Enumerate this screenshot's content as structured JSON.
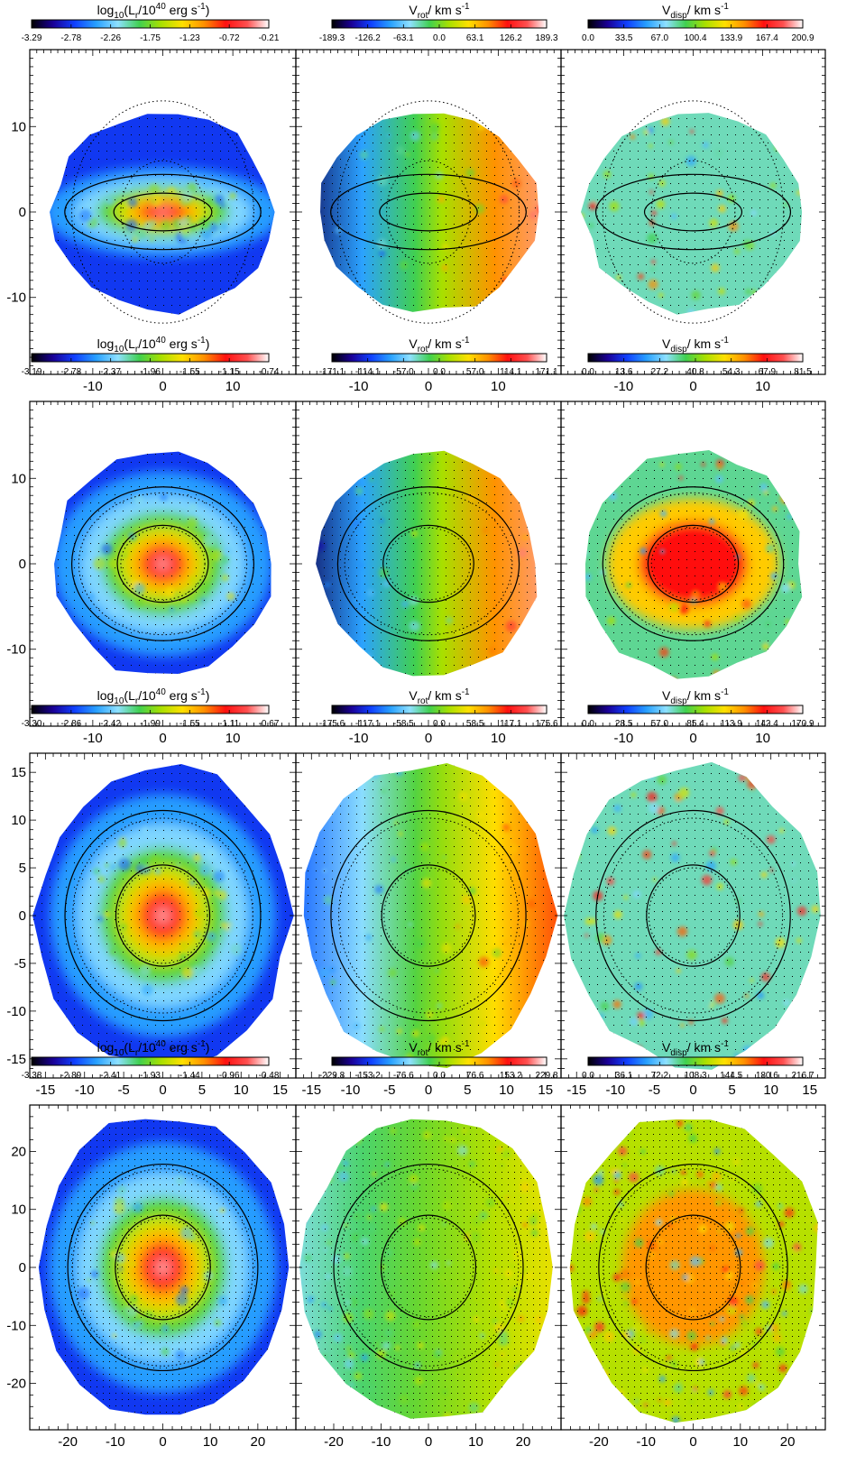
{
  "figure": {
    "colormap": [
      "#000000",
      "#1a0096",
      "#1040ff",
      "#28a0ff",
      "#8ee0ff",
      "#40d050",
      "#a8e000",
      "#ffe000",
      "#ff9000",
      "#ff1010",
      "#ff5050",
      "#ffffff"
    ],
    "colorbar_labels": {
      "lum": [
        "log",
        "10",
        "(L",
        "r",
        "/10",
        "40",
        " erg s",
        "-1",
        ")"
      ],
      "rot": [
        "V",
        "rot",
        "/ km s",
        "-1"
      ],
      "disp": [
        "V",
        "disp",
        "/ km s",
        "-1"
      ]
    }
  },
  "chart_data": [
    {
      "type": "heatmap",
      "row": 1,
      "quantity": "lum",
      "colorbar_ticks": [
        "-3.29",
        "-2.78",
        "-2.26",
        "-1.75",
        "-1.23",
        "-0.72",
        "-0.21"
      ],
      "xlim": [
        -19,
        19
      ],
      "ylim": [
        -19,
        19
      ],
      "xticks": [
        -10,
        0,
        10
      ],
      "yticks": [
        -10,
        0,
        10
      ],
      "xticklabels": [
        "-10",
        "0",
        "10"
      ],
      "yticklabels": [
        "-10",
        "0",
        "10"
      ],
      "ellipses": [
        {
          "rx": 7,
          "ry": 2.2,
          "style": "solid"
        },
        {
          "rx": 14,
          "ry": 4.4,
          "style": "solid"
        },
        {
          "rx": 13,
          "ry": 13,
          "style": "dotted"
        },
        {
          "rx": 6,
          "ry": 6,
          "style": "dotted"
        }
      ]
    },
    {
      "type": "heatmap",
      "row": 1,
      "quantity": "rot",
      "colorbar_ticks": [
        "-189.3",
        "-126.2",
        "-63.1",
        "0.0",
        "63.1",
        "126.2",
        "189.3"
      ],
      "xlim": [
        -19,
        19
      ],
      "ylim": [
        -19,
        19
      ],
      "xticks": [
        -10,
        0,
        10
      ],
      "yticks": [
        -10,
        0,
        10
      ],
      "xticklabels": [
        "-10",
        "0",
        "10"
      ],
      "yticklabels": [],
      "ellipses": [
        {
          "rx": 7,
          "ry": 2.2,
          "style": "solid"
        },
        {
          "rx": 14,
          "ry": 4.4,
          "style": "solid"
        },
        {
          "rx": 13,
          "ry": 13,
          "style": "dotted"
        },
        {
          "rx": 6,
          "ry": 6,
          "style": "dotted"
        }
      ]
    },
    {
      "type": "heatmap",
      "row": 1,
      "quantity": "disp",
      "colorbar_ticks": [
        "0.0",
        "33.5",
        "67.0",
        "100.4",
        "133.9",
        "167.4",
        "200.9"
      ],
      "xlim": [
        -19,
        19
      ],
      "ylim": [
        -19,
        19
      ],
      "xticks": [
        -10,
        0,
        10
      ],
      "yticks": [
        -10,
        0,
        10
      ],
      "xticklabels": [
        "-10",
        "0",
        "10"
      ],
      "yticklabels": [],
      "ellipses": [
        {
          "rx": 7,
          "ry": 2.2,
          "style": "solid"
        },
        {
          "rx": 14,
          "ry": 4.4,
          "style": "solid"
        },
        {
          "rx": 13,
          "ry": 13,
          "style": "dotted"
        },
        {
          "rx": 6,
          "ry": 6,
          "style": "dotted"
        }
      ]
    },
    {
      "type": "heatmap",
      "row": 2,
      "quantity": "lum",
      "colorbar_ticks": [
        "-3.19",
        "-2.78",
        "-2.37",
        "-1.96",
        "-1.55",
        "-1.15",
        "-0.74"
      ],
      "xlim": [
        -19,
        19
      ],
      "ylim": [
        -19,
        19
      ],
      "xticks": [
        -10,
        0,
        10
      ],
      "yticks": [
        -10,
        0,
        10
      ],
      "xticklabels": [
        "-10",
        "0",
        "10"
      ],
      "yticklabels": [
        "-10",
        "0",
        "10"
      ],
      "ellipses": [
        {
          "rx": 6.5,
          "ry": 4.5,
          "style": "solid"
        },
        {
          "rx": 13,
          "ry": 9,
          "style": "solid"
        },
        {
          "rx": 12,
          "ry": 8.3,
          "style": "dotted"
        },
        {
          "rx": 6,
          "ry": 4.2,
          "style": "dotted"
        }
      ]
    },
    {
      "type": "heatmap",
      "row": 2,
      "quantity": "rot",
      "colorbar_ticks": [
        "-171.1",
        "-114.1",
        "-57.0",
        "0.0",
        "57.0",
        "114.1",
        "171.1"
      ],
      "xlim": [
        -19,
        19
      ],
      "ylim": [
        -19,
        19
      ],
      "xticks": [
        -10,
        0,
        10
      ],
      "yticks": [
        -10,
        0,
        10
      ],
      "xticklabels": [
        "-10",
        "0",
        "10"
      ],
      "yticklabels": [],
      "ellipses": [
        {
          "rx": 6.5,
          "ry": 4.5,
          "style": "solid"
        },
        {
          "rx": 13,
          "ry": 9,
          "style": "solid"
        },
        {
          "rx": 12,
          "ry": 8.3,
          "style": "dotted"
        },
        {
          "rx": 6,
          "ry": 4.2,
          "style": "dotted"
        }
      ]
    },
    {
      "type": "heatmap",
      "row": 2,
      "quantity": "disp",
      "colorbar_ticks": [
        "0.0",
        "13.6",
        "27.2",
        "40.8",
        "54.3",
        "67.9",
        "81.5"
      ],
      "xlim": [
        -19,
        19
      ],
      "ylim": [
        -19,
        19
      ],
      "xticks": [
        -10,
        0,
        10
      ],
      "yticks": [
        -10,
        0,
        10
      ],
      "xticklabels": [
        "-10",
        "0",
        "10"
      ],
      "yticklabels": [],
      "ellipses": [
        {
          "rx": 6.5,
          "ry": 4.5,
          "style": "solid"
        },
        {
          "rx": 13,
          "ry": 9,
          "style": "solid"
        },
        {
          "rx": 12,
          "ry": 8.3,
          "style": "dotted"
        },
        {
          "rx": 6,
          "ry": 4.2,
          "style": "dotted"
        }
      ]
    },
    {
      "type": "heatmap",
      "row": 3,
      "quantity": "lum",
      "colorbar_ticks": [
        "-3.30",
        "-2.86",
        "-2.42",
        "-1.99",
        "-1.55",
        "-1.11",
        "-0.67"
      ],
      "xlim": [
        -17,
        17
      ],
      "ylim": [
        -17,
        17
      ],
      "xticks": [
        -15,
        -10,
        -5,
        0,
        5,
        10,
        15
      ],
      "yticks": [
        -15,
        -10,
        -5,
        0,
        5,
        10,
        15
      ],
      "xticklabels": [
        "-15",
        "-10",
        "-5",
        "0",
        "5",
        "10",
        "15"
      ],
      "yticklabels": [
        "-15",
        "-10",
        "-5",
        "0",
        "5",
        "10",
        "15"
      ],
      "ellipses": [
        {
          "rx": 6,
          "ry": 5.3,
          "style": "solid"
        },
        {
          "rx": 12.5,
          "ry": 11,
          "style": "solid"
        },
        {
          "rx": 11.5,
          "ry": 10.2,
          "style": "dotted"
        },
        {
          "rx": 5.7,
          "ry": 5,
          "style": "dotted"
        }
      ]
    },
    {
      "type": "heatmap",
      "row": 3,
      "quantity": "rot",
      "colorbar_ticks": [
        "-175.6",
        "-117.1",
        "-58.5",
        "0.0",
        "58.5",
        "117.1",
        "175.6"
      ],
      "xlim": [
        -17,
        17
      ],
      "ylim": [
        -17,
        17
      ],
      "xticks": [
        -15,
        -10,
        -5,
        0,
        5,
        10,
        15
      ],
      "yticks": [
        -15,
        -10,
        -5,
        0,
        5,
        10,
        15
      ],
      "xticklabels": [
        "-15",
        "-10",
        "-5",
        "0",
        "5",
        "10",
        "15"
      ],
      "yticklabels": [],
      "ellipses": [
        {
          "rx": 6,
          "ry": 5.3,
          "style": "solid"
        },
        {
          "rx": 12.5,
          "ry": 11,
          "style": "solid"
        },
        {
          "rx": 11.5,
          "ry": 10.2,
          "style": "dotted"
        },
        {
          "rx": 5.7,
          "ry": 5,
          "style": "dotted"
        }
      ]
    },
    {
      "type": "heatmap",
      "row": 3,
      "quantity": "disp",
      "colorbar_ticks": [
        "0.0",
        "28.5",
        "57.0",
        "85.4",
        "113.9",
        "142.4",
        "170.9"
      ],
      "xlim": [
        -17,
        17
      ],
      "ylim": [
        -17,
        17
      ],
      "xticks": [
        -15,
        -10,
        -5,
        0,
        5,
        10,
        15
      ],
      "yticks": [
        -15,
        -10,
        -5,
        0,
        5,
        10,
        15
      ],
      "xticklabels": [
        "-15",
        "-10",
        "-5",
        "0",
        "5",
        "10",
        "15"
      ],
      "yticklabels": [],
      "ellipses": [
        {
          "rx": 6,
          "ry": 5.3,
          "style": "solid"
        },
        {
          "rx": 12.5,
          "ry": 11,
          "style": "solid"
        },
        {
          "rx": 11.5,
          "ry": 10.2,
          "style": "dotted"
        },
        {
          "rx": 5.7,
          "ry": 5,
          "style": "dotted"
        }
      ]
    },
    {
      "type": "heatmap",
      "row": 4,
      "quantity": "lum",
      "colorbar_ticks": [
        "-3.38",
        "-2.89",
        "-2.41",
        "-1.93",
        "-1.44",
        "-0.96",
        "-0.48"
      ],
      "xlim": [
        -28,
        28
      ],
      "ylim": [
        -28,
        28
      ],
      "xticks": [
        -20,
        -10,
        0,
        10,
        20
      ],
      "yticks": [
        -20,
        -10,
        0,
        10,
        20
      ],
      "xticklabels": [
        "-20",
        "-10",
        "0",
        "10",
        "20"
      ],
      "yticklabels": [
        "-20",
        "-10",
        "0",
        "10",
        "20"
      ],
      "ellipses": [
        {
          "rx": 10,
          "ry": 9,
          "style": "solid"
        },
        {
          "rx": 20,
          "ry": 17.8,
          "style": "solid"
        },
        {
          "rx": 19,
          "ry": 17,
          "style": "dotted"
        },
        {
          "rx": 9.5,
          "ry": 8.5,
          "style": "dotted"
        }
      ]
    },
    {
      "type": "heatmap",
      "row": 4,
      "quantity": "rot",
      "colorbar_ticks": [
        "-229.8",
        "-153.2",
        "-76.6",
        "0.0",
        "76.6",
        "153.2",
        "229.8"
      ],
      "xlim": [
        -28,
        28
      ],
      "ylim": [
        -28,
        28
      ],
      "xticks": [
        -20,
        -10,
        0,
        10,
        20
      ],
      "yticks": [
        -20,
        -10,
        0,
        10,
        20
      ],
      "xticklabels": [
        "-20",
        "-10",
        "0",
        "10",
        "20"
      ],
      "yticklabels": [],
      "ellipses": [
        {
          "rx": 10,
          "ry": 9,
          "style": "solid"
        },
        {
          "rx": 20,
          "ry": 17.8,
          "style": "solid"
        },
        {
          "rx": 19,
          "ry": 17,
          "style": "dotted"
        },
        {
          "rx": 9.5,
          "ry": 8.5,
          "style": "dotted"
        }
      ]
    },
    {
      "type": "heatmap",
      "row": 4,
      "quantity": "disp",
      "colorbar_ticks": [
        "0.0",
        "36.1",
        "72.2",
        "108.3",
        "144.5",
        "180.6",
        "216.7"
      ],
      "xlim": [
        -28,
        28
      ],
      "ylim": [
        -28,
        28
      ],
      "xticks": [
        -20,
        -10,
        0,
        10,
        20
      ],
      "yticks": [
        -20,
        -10,
        0,
        10,
        20
      ],
      "xticklabels": [
        "-20",
        "-10",
        "0",
        "10",
        "20"
      ],
      "yticklabels": [],
      "ellipses": [
        {
          "rx": 10,
          "ry": 9,
          "style": "solid"
        },
        {
          "rx": 20,
          "ry": 17.8,
          "style": "solid"
        },
        {
          "rx": 19,
          "ry": 17,
          "style": "dotted"
        },
        {
          "rx": 9.5,
          "ry": 8.5,
          "style": "dotted"
        }
      ]
    }
  ]
}
